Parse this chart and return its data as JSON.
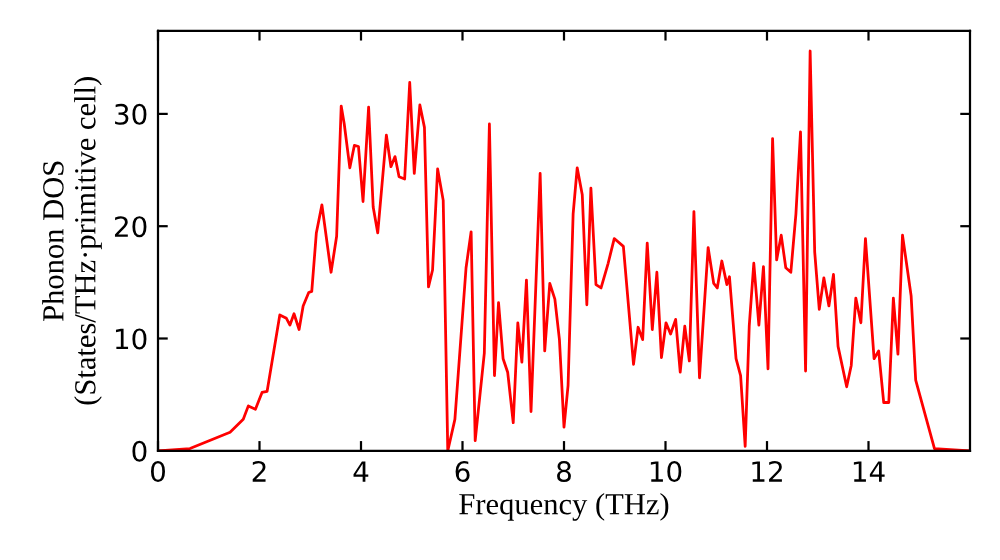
{
  "chart_data": {
    "type": "line",
    "xlabel": "Frequency (THz)",
    "ylabel": "Phonon DOS\n(States/THz·primitive cell)",
    "xlim": [
      0,
      16
    ],
    "ylim": [
      0,
      37.4
    ],
    "xticks": [
      0,
      2,
      4,
      6,
      8,
      10,
      12,
      14
    ],
    "yticks": [
      0,
      10,
      20,
      30
    ],
    "grid": false,
    "legend": false,
    "marker": "none",
    "line_style": "solid",
    "series": [
      {
        "color": "#ff0000",
        "x": [
          0,
          0.63,
          1.42,
          1.68,
          1.78,
          1.92,
          2.05,
          2.15,
          2.4,
          2.53,
          2.6,
          2.68,
          2.78,
          2.86,
          2.97,
          3.03,
          3.12,
          3.23,
          3.41,
          3.52,
          3.61,
          3.67,
          3.78,
          3.87,
          3.95,
          4.04,
          4.15,
          4.24,
          4.33,
          4.5,
          4.59,
          4.67,
          4.75,
          4.86,
          4.96,
          5.05,
          5.16,
          5.25,
          5.33,
          5.41,
          5.51,
          5.62,
          5.71,
          5.85,
          6.07,
          6.17,
          6.25,
          6.43,
          6.53,
          6.63,
          6.71,
          6.8,
          6.89,
          7.0,
          7.09,
          7.17,
          7.26,
          7.35,
          7.53,
          7.62,
          7.72,
          7.82,
          7.91,
          8.0,
          8.08,
          8.18,
          8.26,
          8.36,
          8.45,
          8.53,
          8.63,
          8.73,
          8.87,
          8.99,
          9.17,
          9.37,
          9.46,
          9.55,
          9.64,
          9.74,
          9.83,
          9.92,
          10.01,
          10.1,
          10.2,
          10.29,
          10.38,
          10.47,
          10.56,
          10.67,
          10.84,
          10.95,
          11.02,
          11.11,
          11.21,
          11.26,
          11.39,
          11.48,
          11.57,
          11.65,
          11.74,
          11.84,
          11.93,
          12.02,
          12.11,
          12.19,
          12.28,
          12.37,
          12.47,
          12.57,
          12.66,
          12.76,
          12.85,
          12.94,
          13.03,
          13.12,
          13.22,
          13.31,
          13.4,
          13.57,
          13.66,
          13.75,
          13.85,
          13.94,
          14.11,
          14.2,
          14.3,
          14.4,
          14.49,
          14.58,
          14.67,
          14.84,
          14.93,
          15.3,
          15.98
        ],
        "values": [
          0,
          0.2,
          1.65,
          2.8,
          4.0,
          3.7,
          5.2,
          5.3,
          12.1,
          11.8,
          11.2,
          12.2,
          10.8,
          12.9,
          14.1,
          14.2,
          19.4,
          21.9,
          15.9,
          19.1,
          30.7,
          29.1,
          25.2,
          27.2,
          27.1,
          22.2,
          30.6,
          21.7,
          19.4,
          28.1,
          25.3,
          26.2,
          24.4,
          24.2,
          32.8,
          24.7,
          30.8,
          28.8,
          14.6,
          16.1,
          25.1,
          22.3,
          0,
          2.8,
          16.3,
          19.5,
          0.9,
          8.7,
          29.1,
          6.7,
          13.2,
          8.2,
          7.0,
          2.5,
          11.4,
          7.9,
          15.2,
          3.5,
          24.7,
          8.9,
          14.9,
          13.5,
          9.9,
          2.1,
          5.8,
          21.1,
          25.2,
          22.8,
          13.0,
          23.4,
          14.8,
          14.5,
          16.7,
          18.9,
          18.2,
          7.7,
          11.0,
          9.9,
          18.5,
          10.8,
          15.9,
          8.3,
          11.4,
          10.4,
          11.7,
          7.0,
          11.1,
          8.0,
          21.3,
          6.5,
          18.1,
          14.9,
          14.5,
          16.9,
          14.8,
          15.5,
          8.2,
          6.7,
          0.4,
          11.1,
          16.7,
          11.2,
          16.4,
          7.3,
          27.8,
          17.0,
          19.2,
          16.3,
          15.9,
          21.1,
          28.4,
          7.1,
          35.6,
          17.7,
          12.6,
          15.4,
          12.9,
          15.7,
          9.3,
          5.7,
          7.6,
          13.6,
          11.4,
          18.9,
          8.2,
          8.9,
          4.3,
          4.3,
          13.6,
          8.6,
          19.2,
          13.8,
          6.3,
          0.2,
          0
        ]
      }
    ]
  }
}
